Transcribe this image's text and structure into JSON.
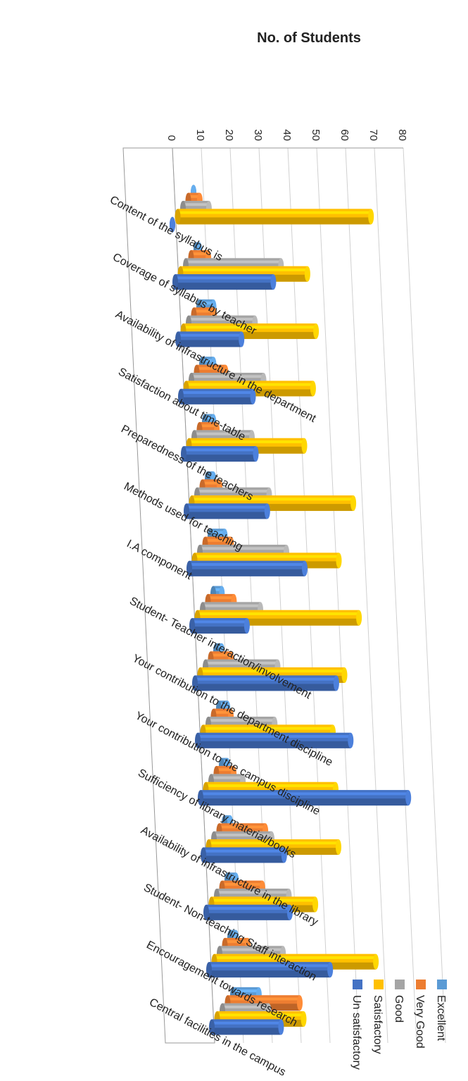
{
  "chart_data": {
    "type": "bar",
    "orientation": "horizontal",
    "style": "3d-cylinder",
    "ylabel": "No. of Students",
    "xlim": [
      0,
      80
    ],
    "ticks": [
      0,
      10,
      20,
      30,
      40,
      50,
      60,
      70,
      80
    ],
    "grid": true,
    "legend_position": "top-right",
    "categories": [
      "Content of the syllabus is",
      "Coverage of syllabus by teacher",
      "Availability of infrastructure in the department",
      "Satisfaction about time-table",
      "Preparedness of the teachers",
      "Methods used for teaching",
      "I.A component",
      "Student- Teacher interaction/involvement",
      "Your contribution to the department discipline",
      "Your contribution to the campus discipline",
      "Sufficiency of library material/books",
      "Availability of infrastructure in the library",
      "Student- Non-teaching Staff interaction",
      "Encouragement towards research",
      "Central facilities in the campus"
    ],
    "series": [
      {
        "name": "Excellent",
        "color": "#5b9bd5",
        "values": [
          0,
          1,
          5,
          4,
          3,
          2,
          5,
          3,
          2,
          3,
          2,
          2,
          3,
          2,
          9
        ]
      },
      {
        "name": "Very Good",
        "color": "#ed7d31",
        "values": [
          4,
          6,
          7,
          10,
          6,
          6,
          9,
          9,
          7,
          6,
          6,
          16,
          14,
          8,
          25
        ]
      },
      {
        "name": "Good",
        "color": "#a5a5a5",
        "values": [
          9,
          33,
          23,
          25,
          20,
          25,
          30,
          20,
          25,
          23,
          11,
          20,
          25,
          22,
          16
        ]
      },
      {
        "name": "Satisfactory",
        "color": "#ffc000",
        "values": [
          67,
          44,
          46,
          44,
          40,
          56,
          50,
          56,
          50,
          45,
          45,
          45,
          36,
          56,
          30
        ]
      },
      {
        "name": "Un satisfactory",
        "color": "#4472c4",
        "values": [
          0,
          34,
          22,
          25,
          25,
          28,
          40,
          19,
          49,
          53,
          72,
          28,
          29,
          42,
          24
        ]
      }
    ]
  }
}
